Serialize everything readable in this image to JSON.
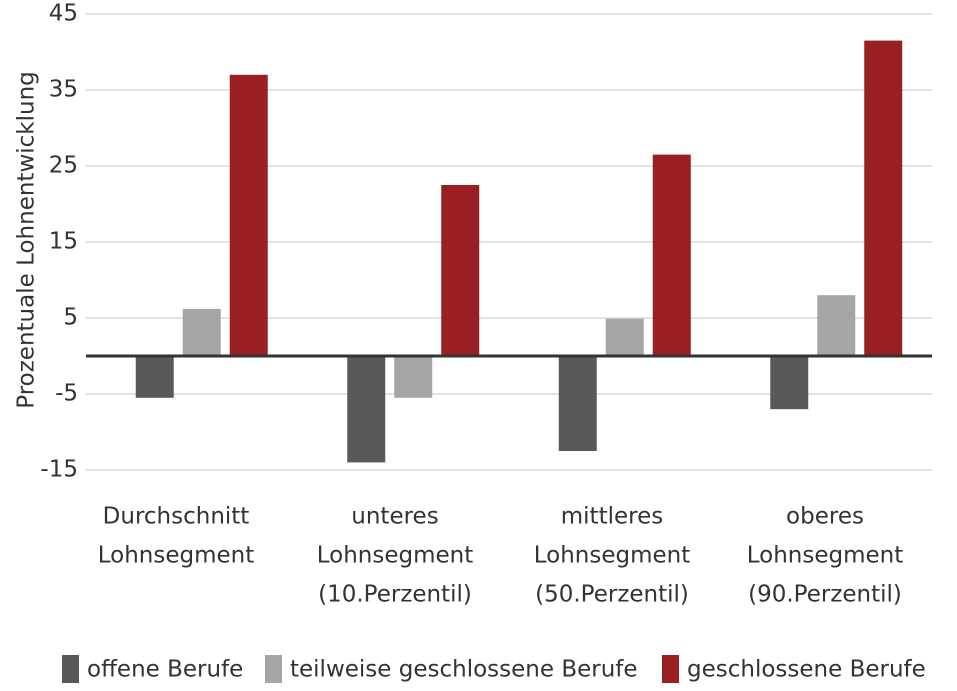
{
  "chart_data": {
    "type": "bar",
    "title": "",
    "ylabel": "Prozentuale Lohnentwicklung",
    "xlabel": "",
    "ylim": [
      -15,
      45
    ],
    "yticks": [
      45,
      35,
      25,
      15,
      5,
      -5,
      -15
    ],
    "grid": true,
    "legend_position": "bottom",
    "categories": [
      [
        "Durchschnitt",
        "Lohnsegment"
      ],
      [
        "unteres",
        "Lohnsegment",
        "(10.Perzentil)"
      ],
      [
        "mittleres",
        "Lohnsegment",
        "(50.Perzentil)"
      ],
      [
        "oberes",
        "Lohnsegment",
        "(90.Perzentil)"
      ]
    ],
    "series": [
      {
        "name": "offene Berufe",
        "color": "#595959",
        "values": [
          -5.5,
          -14,
          -12.5,
          -7
        ]
      },
      {
        "name": "teilweise geschlossene Berufe",
        "color": "#a6a4a4",
        "values": [
          6.2,
          -5.5,
          4.9,
          8
        ]
      },
      {
        "name": "geschlossene Berufe",
        "color": "#9a1f23",
        "values": [
          37,
          22.5,
          26.5,
          41.5
        ]
      }
    ]
  }
}
